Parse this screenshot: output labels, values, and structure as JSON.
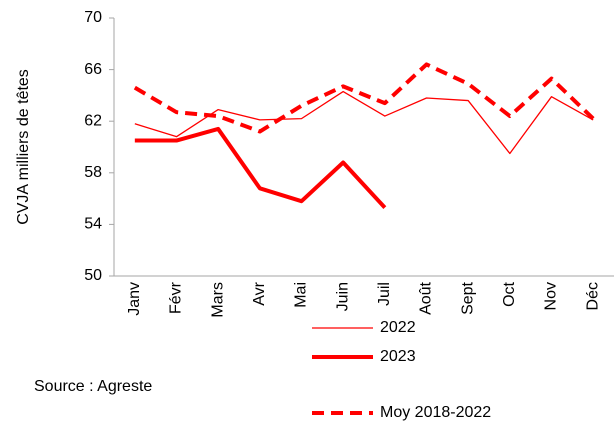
{
  "chart_data": {
    "type": "line",
    "y_label": "CVJA milliers de têtes",
    "source": "Source : Agreste",
    "categories": [
      "Janv",
      "Févr",
      "Mars",
      "Avr",
      "Mai",
      "Juin",
      "Juil",
      "Août",
      "Sept",
      "Oct",
      "Nov",
      "Déc"
    ],
    "series": [
      {
        "name": "2022",
        "color": "#ff0000",
        "values": [
          61.8,
          60.8,
          62.9,
          62.1,
          62.2,
          64.3,
          62.4,
          63.8,
          63.6,
          59.5,
          63.9,
          62.1
        ]
      },
      {
        "name": "2023",
        "color": "#ff0000",
        "values": [
          60.5,
          60.5,
          61.4,
          56.8,
          55.8,
          58.8,
          55.3,
          null,
          null,
          null,
          null,
          null
        ]
      },
      {
        "name": "Moy 2018-2022",
        "color": "#ff0000",
        "values": [
          64.6,
          62.7,
          62.4,
          61.2,
          63.2,
          64.7,
          63.4,
          66.4,
          64.9,
          62.4,
          65.3,
          62.2
        ]
      }
    ],
    "ylim": [
      50,
      70
    ],
    "yticks": [
      50,
      54,
      58,
      62,
      66,
      70
    ],
    "grid": false
  }
}
